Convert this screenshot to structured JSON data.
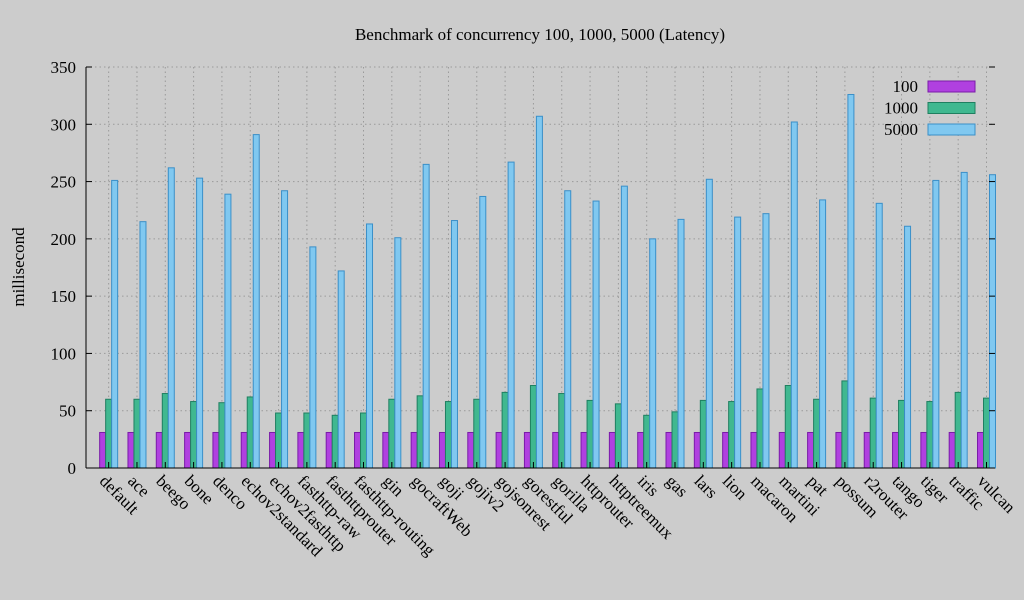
{
  "colors": {
    "background": "#cccccc",
    "series": [
      "#b040e0",
      "#40b890",
      "#80c8f0"
    ],
    "series_stroke": [
      "#7a1ca8",
      "#1f7f60",
      "#3a8fc8"
    ]
  },
  "chart_data": {
    "type": "bar",
    "title": "Benchmark of concurrency 100, 1000, 5000 (Latency)",
    "xlabel": "",
    "ylabel": "millisecond",
    "ylim": [
      0,
      350
    ],
    "yticks": [
      0,
      50,
      100,
      150,
      200,
      250,
      300,
      350
    ],
    "grid": true,
    "legend_position": "top-right",
    "categories": [
      "default",
      "ace",
      "beego",
      "bone",
      "denco",
      "echov2standard",
      "echov2fasthttp",
      "fasthttp-raw",
      "fasthttprouter",
      "fasthttp-routing",
      "gin",
      "gocraftWeb",
      "goji",
      "gojiv2",
      "gojsonrest",
      "gorestful",
      "gorilla",
      "httprouter",
      "httptreemux",
      "iris",
      "gas",
      "lars",
      "lion",
      "macaron",
      "martini",
      "pat",
      "possum",
      "r2router",
      "tango",
      "tiger",
      "traffic",
      "vulcan"
    ],
    "series": [
      {
        "name": "100",
        "values": [
          31,
          31,
          31,
          31,
          31,
          31,
          31,
          31,
          31,
          31,
          31,
          31,
          31,
          31,
          31,
          31,
          31,
          31,
          31,
          31,
          31,
          31,
          31,
          31,
          31,
          31,
          31,
          31,
          31,
          31,
          31,
          31
        ]
      },
      {
        "name": "1000",
        "values": [
          60,
          60,
          65,
          58,
          57,
          62,
          48,
          48,
          46,
          48,
          60,
          63,
          58,
          60,
          66,
          72,
          65,
          59,
          56,
          46,
          49,
          59,
          58,
          69,
          72,
          60,
          76,
          61,
          59,
          58,
          66,
          61
        ]
      },
      {
        "name": "5000",
        "values": [
          251,
          215,
          262,
          253,
          239,
          291,
          242,
          193,
          172,
          213,
          201,
          265,
          216,
          237,
          267,
          307,
          242,
          233,
          246,
          200,
          217,
          252,
          219,
          222,
          302,
          234,
          326,
          231,
          211,
          251,
          258,
          256
        ]
      }
    ]
  }
}
